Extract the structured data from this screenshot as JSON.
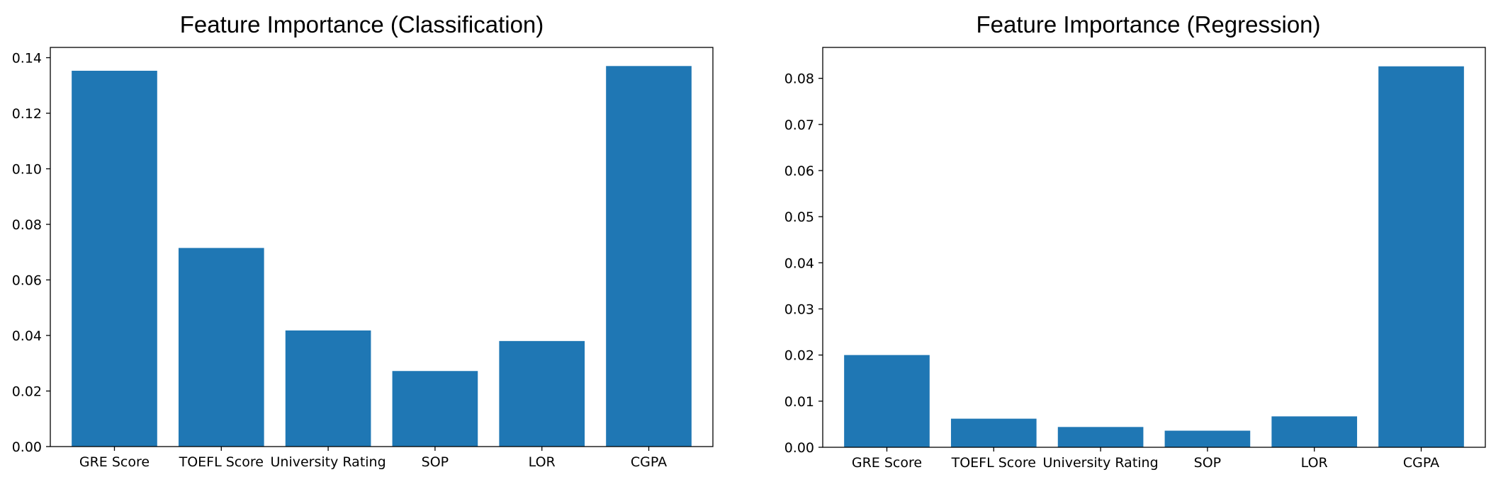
{
  "chart_data": [
    {
      "type": "bar",
      "title": "Feature Importance (Classification)",
      "xlabel": "",
      "ylabel": "",
      "categories": [
        "GRE Score",
        "TOEFL Score",
        "University Rating",
        "SOP",
        "LOR",
        "CGPA"
      ],
      "values": [
        0.1353,
        0.0715,
        0.0418,
        0.0272,
        0.038,
        0.137
      ],
      "ylim": [
        0,
        0.1437
      ],
      "yticks": [
        0.0,
        0.02,
        0.04,
        0.06,
        0.08,
        0.1,
        0.12,
        0.14
      ],
      "ytick_labels": [
        "0.00",
        "0.02",
        "0.04",
        "0.06",
        "0.08",
        "0.10",
        "0.12",
        "0.14"
      ],
      "grid": false,
      "legend": "none",
      "bar_color": "#1f77b4"
    },
    {
      "type": "bar",
      "title": "Feature Importance (Regression)",
      "xlabel": "",
      "ylabel": "",
      "categories": [
        "GRE Score",
        "TOEFL Score",
        "University Rating",
        "SOP",
        "LOR",
        "CGPA"
      ],
      "values": [
        0.02,
        0.0062,
        0.0044,
        0.0036,
        0.0067,
        0.0826
      ],
      "ylim": [
        0,
        0.0867
      ],
      "yticks": [
        0.0,
        0.01,
        0.02,
        0.03,
        0.04,
        0.05,
        0.06,
        0.07,
        0.08
      ],
      "ytick_labels": [
        "0.00",
        "0.01",
        "0.02",
        "0.03",
        "0.04",
        "0.05",
        "0.06",
        "0.07",
        "0.08"
      ],
      "grid": false,
      "legend": "none",
      "bar_color": "#1f77b4"
    }
  ]
}
